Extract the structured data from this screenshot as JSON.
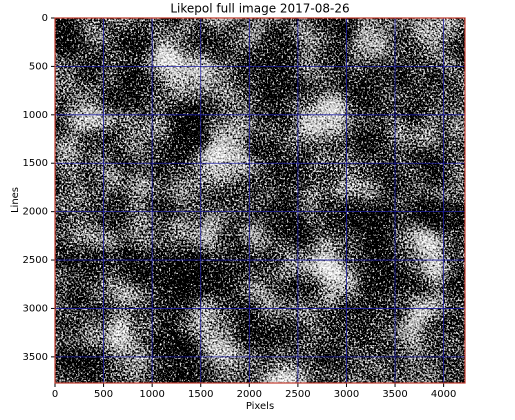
{
  "chart_data": {
    "type": "image",
    "title": "Likepol full image 2017-08-26",
    "x_label": "Pixels",
    "y_label": "Lines",
    "xlim": [
      0,
      4220
    ],
    "ylim": [
      3770,
      0
    ],
    "xticks": [
      0,
      500,
      1000,
      1500,
      2000,
      2500,
      3000,
      3500,
      4000
    ],
    "yticks": [
      0,
      500,
      1000,
      1500,
      2000,
      2500,
      3000,
      3500
    ],
    "grid": true,
    "grid_color": "#1a1aa0",
    "frame_color": "#c0392b"
  }
}
